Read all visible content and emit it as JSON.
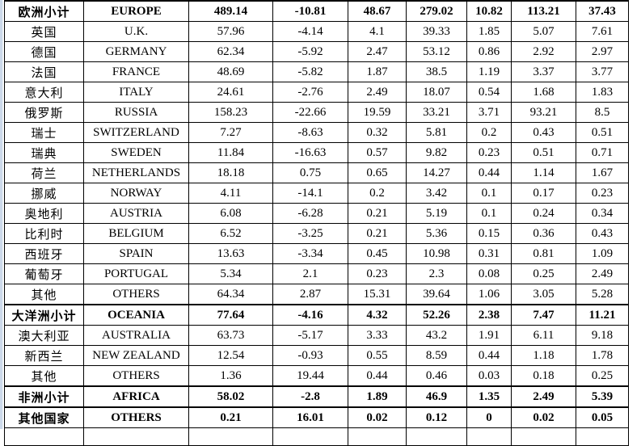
{
  "page": {
    "background_color": "#ffffff",
    "border_color": "#000000",
    "text_color": "#000000",
    "left_strip_color": "#ccd9ea"
  },
  "table": {
    "rows": [
      {
        "cn": "欧洲小计",
        "en": "EUROPE",
        "values": [
          "489.14",
          "-10.81",
          "48.67",
          "279.02",
          "10.82",
          "113.21",
          "37.43"
        ],
        "bold": true
      },
      {
        "cn": "英国",
        "en": "U.K.",
        "values": [
          "57.96",
          "-4.14",
          "4.1",
          "39.33",
          "1.85",
          "5.07",
          "7.61"
        ],
        "bold": false
      },
      {
        "cn": "德国",
        "en": "GERMANY",
        "values": [
          "62.34",
          "-5.92",
          "2.47",
          "53.12",
          "0.86",
          "2.92",
          "2.97"
        ],
        "bold": false
      },
      {
        "cn": "法国",
        "en": "FRANCE",
        "values": [
          "48.69",
          "-5.82",
          "1.87",
          "38.5",
          "1.19",
          "3.37",
          "3.77"
        ],
        "bold": false
      },
      {
        "cn": "意大利",
        "en": "ITALY",
        "values": [
          "24.61",
          "-2.76",
          "2.49",
          "18.07",
          "0.54",
          "1.68",
          "1.83"
        ],
        "bold": false
      },
      {
        "cn": "俄罗斯",
        "en": "RUSSIA",
        "values": [
          "158.23",
          "-22.66",
          "19.59",
          "33.21",
          "3.71",
          "93.21",
          "8.5"
        ],
        "bold": false
      },
      {
        "cn": "瑞士",
        "en": "SWITZERLAND",
        "values": [
          "7.27",
          "-8.63",
          "0.32",
          "5.81",
          "0.2",
          "0.43",
          "0.51"
        ],
        "bold": false
      },
      {
        "cn": "瑞典",
        "en": "SWEDEN",
        "values": [
          "11.84",
          "-16.63",
          "0.57",
          "9.82",
          "0.23",
          "0.51",
          "0.71"
        ],
        "bold": false
      },
      {
        "cn": "荷兰",
        "en": "NETHERLANDS",
        "values": [
          "18.18",
          "0.75",
          "0.65",
          "14.27",
          "0.44",
          "1.14",
          "1.67"
        ],
        "bold": false
      },
      {
        "cn": "挪威",
        "en": "NORWAY",
        "values": [
          "4.11",
          "-14.1",
          "0.2",
          "3.42",
          "0.1",
          "0.17",
          "0.23"
        ],
        "bold": false
      },
      {
        "cn": "奥地利",
        "en": "AUSTRIA",
        "values": [
          "6.08",
          "-6.28",
          "0.21",
          "5.19",
          "0.1",
          "0.24",
          "0.34"
        ],
        "bold": false
      },
      {
        "cn": "比利时",
        "en": "BELGIUM",
        "values": [
          "6.52",
          "-3.25",
          "0.21",
          "5.36",
          "0.15",
          "0.36",
          "0.43"
        ],
        "bold": false
      },
      {
        "cn": "西班牙",
        "en": "SPAIN",
        "values": [
          "13.63",
          "-3.34",
          "0.45",
          "10.98",
          "0.31",
          "0.81",
          "1.09"
        ],
        "bold": false
      },
      {
        "cn": "葡萄牙",
        "en": "PORTUGAL",
        "values": [
          "5.34",
          "2.1",
          "0.23",
          "2.3",
          "0.08",
          "0.25",
          "2.49"
        ],
        "bold": false
      },
      {
        "cn": "其他",
        "en": "OTHERS",
        "values": [
          "64.34",
          "2.87",
          "15.31",
          "39.64",
          "1.06",
          "3.05",
          "5.28"
        ],
        "bold": false
      },
      {
        "cn": "大洋洲小计",
        "en": "OCEANIA",
        "values": [
          "77.64",
          "-4.16",
          "4.32",
          "52.26",
          "2.38",
          "7.47",
          "11.21"
        ],
        "bold": true
      },
      {
        "cn": "澳大利亚",
        "en": "AUSTRALIA",
        "values": [
          "63.73",
          "-5.17",
          "3.33",
          "43.2",
          "1.91",
          "6.11",
          "9.18"
        ],
        "bold": false
      },
      {
        "cn": "新西兰",
        "en": "NEW ZEALAND",
        "values": [
          "12.54",
          "-0.93",
          "0.55",
          "8.59",
          "0.44",
          "1.18",
          "1.78"
        ],
        "bold": false
      },
      {
        "cn": "其他",
        "en": "OTHERS",
        "values": [
          "1.36",
          "19.44",
          "0.44",
          "0.46",
          "0.03",
          "0.18",
          "0.25"
        ],
        "bold": false
      },
      {
        "cn": "非洲小计",
        "en": "AFRICA",
        "values": [
          "58.02",
          "-2.8",
          "1.89",
          "46.9",
          "1.35",
          "2.49",
          "5.39"
        ],
        "bold": true
      },
      {
        "cn": "其他国家",
        "en": "OTHERS",
        "values": [
          "0.21",
          "16.01",
          "0.02",
          "0.12",
          "0",
          "0.02",
          "0.05"
        ],
        "bold": true
      }
    ]
  }
}
